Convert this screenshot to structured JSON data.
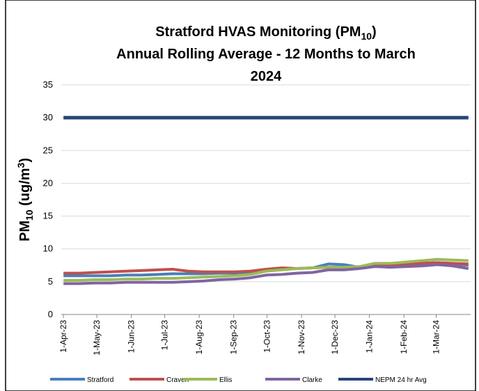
{
  "chart_data": {
    "type": "line",
    "title": [
      [
        "Stratford HVAS Monitoring (PM",
        "10",
        ")"
      ],
      [
        "Annual Rolling Average - 12 Months to March"
      ],
      [
        "2024"
      ]
    ],
    "y_label": [
      "PM",
      "10",
      " (ug/m",
      "3",
      ")"
    ],
    "x": [
      0,
      14,
      28,
      42,
      56,
      70,
      84,
      98,
      112,
      126,
      140,
      154,
      168,
      182,
      196,
      210,
      224,
      238,
      252,
      266,
      280,
      294,
      308,
      322,
      336,
      350,
      364
    ],
    "xlim": [
      -2,
      366
    ],
    "xticks": [
      {
        "value": 0,
        "label": "1-Apr-23"
      },
      {
        "value": 30,
        "label": "1-May-23"
      },
      {
        "value": 61,
        "label": "1-Jun-23"
      },
      {
        "value": 91,
        "label": "1-Jul-23"
      },
      {
        "value": 122,
        "label": "1-Aug-23"
      },
      {
        "value": 153,
        "label": "1-Sep-23"
      },
      {
        "value": 183,
        "label": "1-Oct-23"
      },
      {
        "value": 214,
        "label": "1-Nov-23"
      },
      {
        "value": 244,
        "label": "1-Dec-23"
      },
      {
        "value": 275,
        "label": "1-Jan-24"
      },
      {
        "value": 306,
        "label": "1-Feb-24"
      },
      {
        "value": 335,
        "label": "1-Mar-24"
      }
    ],
    "ylim": [
      0,
      35
    ],
    "yticks": [
      0,
      5,
      10,
      15,
      20,
      25,
      30,
      35
    ],
    "grid": true,
    "legend": "bottom",
    "series": [
      {
        "name": "Stratford",
        "color": "#4a7ebb",
        "values": [
          5.9,
          5.9,
          5.9,
          5.9,
          6.0,
          6.0,
          6.1,
          6.2,
          6.2,
          6.2,
          6.3,
          6.3,
          6.4,
          6.6,
          6.9,
          7.0,
          7.1,
          7.7,
          7.6,
          7.2,
          7.4,
          7.7,
          7.7,
          7.8,
          7.9,
          7.7,
          7.5
        ]
      },
      {
        "name": "Craven",
        "color": "#c0504d",
        "values": [
          6.3,
          6.3,
          6.4,
          6.5,
          6.6,
          6.7,
          6.8,
          6.9,
          6.6,
          6.5,
          6.5,
          6.5,
          6.6,
          6.9,
          7.1,
          7.0,
          7.1,
          7.2,
          7.2,
          7.2,
          7.4,
          7.6,
          7.7,
          7.8,
          7.9,
          7.8,
          7.7
        ]
      },
      {
        "name": "Ellis",
        "color": "#9bbb59",
        "values": [
          5.2,
          5.2,
          5.3,
          5.3,
          5.4,
          5.4,
          5.5,
          5.5,
          5.6,
          5.7,
          5.8,
          5.9,
          6.1,
          6.6,
          6.8,
          7.0,
          7.1,
          7.2,
          7.2,
          7.3,
          7.8,
          7.8,
          8.0,
          8.2,
          8.4,
          8.3,
          8.2
        ]
      },
      {
        "name": "Clarke",
        "color": "#8064a2",
        "values": [
          4.7,
          4.7,
          4.8,
          4.8,
          4.9,
          4.9,
          4.9,
          4.9,
          5.0,
          5.1,
          5.3,
          5.4,
          5.6,
          6.0,
          6.1,
          6.3,
          6.4,
          6.8,
          6.8,
          7.0,
          7.3,
          7.2,
          7.3,
          7.4,
          7.6,
          7.4,
          7.0
        ]
      },
      {
        "name": "NEPM 24 hr Avg",
        "color": "#254575",
        "values": [
          30,
          30,
          30,
          30,
          30,
          30,
          30,
          30,
          30,
          30,
          30,
          30,
          30,
          30,
          30,
          30,
          30,
          30,
          30,
          30,
          30,
          30,
          30,
          30,
          30,
          30,
          30
        ]
      }
    ]
  }
}
